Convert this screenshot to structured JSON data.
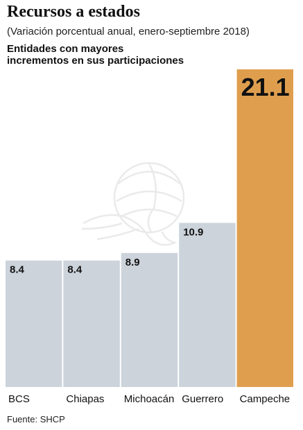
{
  "header": {
    "title": "Recursos a estados",
    "subtitle": "(Variación porcentual anual, enero-septiembre 2018)",
    "heading_line1": "Entidades con mayores",
    "heading_line2": "incrementos en sus participaciones"
  },
  "footer": {
    "source": "Fuente: SHCP"
  },
  "colors": {
    "bar": "#ccd3db",
    "highlight": "#df9e4e",
    "grid": "#ffffff",
    "watermark": "#d9d9d9"
  },
  "watermark_icon": "eagle-coat-of-arms",
  "chart_data": {
    "type": "bar",
    "categories": [
      "BCS",
      "Chiapas",
      "Michoacán",
      "Guerrero",
      "Campeche"
    ],
    "values": [
      8.4,
      8.4,
      8.9,
      10.9,
      21.1
    ],
    "value_labels": [
      "8.4",
      "8.4",
      "8.9",
      "10.9",
      "21.1"
    ],
    "highlight_index": 4,
    "ylim": [
      0,
      21.1
    ],
    "grid": false,
    "legend": "none",
    "xlabel": "",
    "ylabel": ""
  }
}
